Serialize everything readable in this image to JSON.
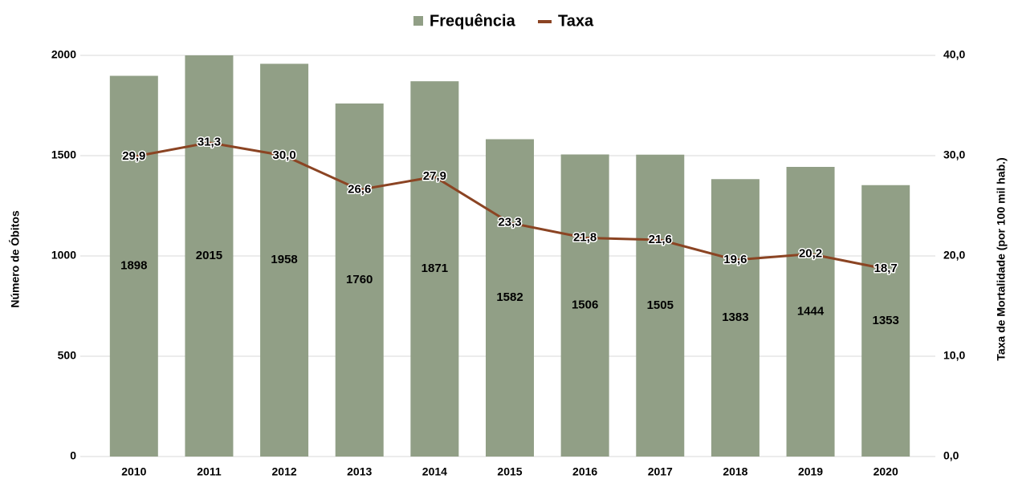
{
  "chart_data": {
    "type": "bar",
    "y_label": "Número de Óbitos",
    "y2_label": "Taxa de Mortalidade (por 100 mil hab.)",
    "categories": [
      "2010",
      "2011",
      "2012",
      "2013",
      "2014",
      "2015",
      "2016",
      "2017",
      "2018",
      "2019",
      "2020"
    ],
    "series": [
      {
        "name": "Frequência",
        "type": "bar",
        "color": "#919f86",
        "values": [
          1898,
          2015,
          1958,
          1760,
          1871,
          1582,
          1506,
          1505,
          1383,
          1444,
          1353
        ]
      },
      {
        "name": "Taxa",
        "type": "line",
        "axis": "y2",
        "color": "#8b4423",
        "values": [
          29.9,
          31.3,
          30.0,
          26.6,
          27.9,
          23.3,
          21.8,
          21.6,
          19.6,
          20.2,
          18.7
        ],
        "value_labels": [
          "29,9",
          "31,3",
          "30,0",
          "26,6",
          "27,9",
          "23,3",
          "21,8",
          "21,6",
          "19,6",
          "20,2",
          "18,7"
        ]
      }
    ],
    "ylim": [
      0,
      2000
    ],
    "yticks": [
      0,
      500,
      1000,
      1500,
      2000
    ],
    "y2lim": [
      0,
      40
    ],
    "y2ticks": [
      {
        "value": 0,
        "label": "0,0"
      },
      {
        "value": 10,
        "label": "10,0"
      },
      {
        "value": 20,
        "label": "20,0"
      },
      {
        "value": 30,
        "label": "30,0"
      },
      {
        "value": 40,
        "label": "40,0"
      }
    ],
    "grid": true,
    "legend": "top"
  }
}
